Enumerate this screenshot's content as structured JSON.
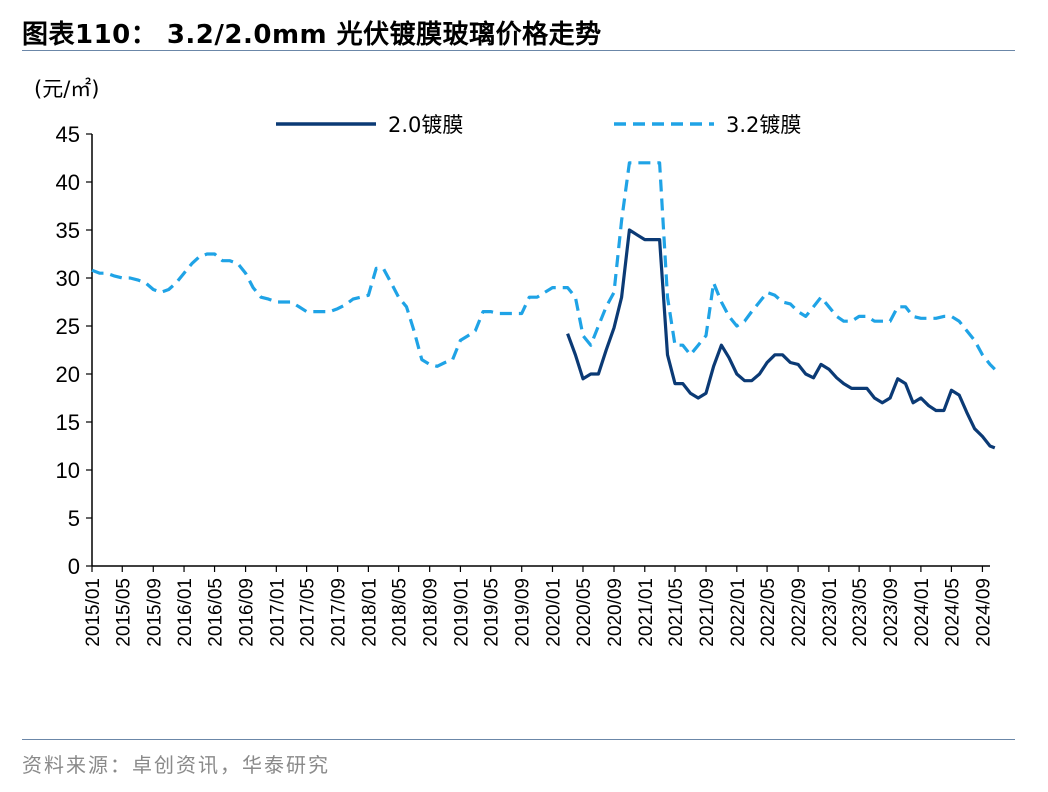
{
  "title": "图表110： 3.2/2.0mm 光伏镀膜玻璃价格走势",
  "source": "资料来源：卓创资讯，华泰研究",
  "chart_data": {
    "type": "line",
    "ylabel": "(元/㎡)",
    "ylim": [
      0,
      45
    ],
    "yticks": [
      "0",
      "5",
      "10",
      "15",
      "20",
      "25",
      "30",
      "35",
      "40",
      "45"
    ],
    "xlim": [
      "2015-01",
      "2024-10"
    ],
    "xticks": [
      "2015/01",
      "2015/05",
      "2015/09",
      "2016/01",
      "2016/05",
      "2016/09",
      "2017/01",
      "2017/05",
      "2017/09",
      "2018/01",
      "2018/05",
      "2018/09",
      "2019/01",
      "2019/05",
      "2019/09",
      "2020/01",
      "2020/05",
      "2020/09",
      "2021/01",
      "2021/05",
      "2021/09",
      "2022/01",
      "2022/05",
      "2022/09",
      "2023/01",
      "2023/05",
      "2023/09",
      "2024/01",
      "2024/05",
      "2024/09"
    ],
    "legend_position": "top",
    "grid": false,
    "series": [
      {
        "name": "2.0镀膜",
        "color": "#0b3a75",
        "style": "solid",
        "points": [
          [
            "2020-03-01",
            24.2
          ],
          [
            "2020-04-01",
            22.0
          ],
          [
            "2020-05-01",
            19.5
          ],
          [
            "2020-06-01",
            20.0
          ],
          [
            "2020-07-01",
            20.0
          ],
          [
            "2020-08-01",
            22.5
          ],
          [
            "2020-09-01",
            24.8
          ],
          [
            "2020-10-01",
            28.0
          ],
          [
            "2020-11-01",
            35.0
          ],
          [
            "2020-12-01",
            34.5
          ],
          [
            "2021-01-01",
            34.0
          ],
          [
            "2021-02-01",
            34.0
          ],
          [
            "2021-03-01",
            34.0
          ],
          [
            "2021-04-01",
            22.0
          ],
          [
            "2021-05-01",
            19.0
          ],
          [
            "2021-06-01",
            19.0
          ],
          [
            "2021-07-01",
            18.0
          ],
          [
            "2021-08-01",
            17.5
          ],
          [
            "2021-09-01",
            18.0
          ],
          [
            "2021-10-01",
            20.8
          ],
          [
            "2021-11-01",
            23.0
          ],
          [
            "2021-12-01",
            21.7
          ],
          [
            "2022-01-01",
            20.0
          ],
          [
            "2022-02-01",
            19.3
          ],
          [
            "2022-03-01",
            19.3
          ],
          [
            "2022-04-01",
            20.0
          ],
          [
            "2022-05-01",
            21.2
          ],
          [
            "2022-06-01",
            22.0
          ],
          [
            "2022-07-01",
            22.0
          ],
          [
            "2022-08-01",
            21.2
          ],
          [
            "2022-09-01",
            21.0
          ],
          [
            "2022-10-01",
            20.0
          ],
          [
            "2022-11-01",
            19.6
          ],
          [
            "2022-12-01",
            21.0
          ],
          [
            "2023-01-01",
            20.5
          ],
          [
            "2023-02-01",
            19.6
          ],
          [
            "2023-03-01",
            19.0
          ],
          [
            "2023-04-01",
            18.5
          ],
          [
            "2023-05-01",
            18.5
          ],
          [
            "2023-06-01",
            18.5
          ],
          [
            "2023-07-01",
            17.5
          ],
          [
            "2023-08-01",
            17.0
          ],
          [
            "2023-09-01",
            17.5
          ],
          [
            "2023-10-01",
            19.5
          ],
          [
            "2023-11-01",
            19.0
          ],
          [
            "2023-12-01",
            17.0
          ],
          [
            "2024-01-01",
            17.5
          ],
          [
            "2024-02-01",
            16.7
          ],
          [
            "2024-03-01",
            16.2
          ],
          [
            "2024-04-01",
            16.2
          ],
          [
            "2024-05-01",
            18.3
          ],
          [
            "2024-06-01",
            17.8
          ],
          [
            "2024-07-01",
            16.0
          ],
          [
            "2024-08-01",
            14.3
          ],
          [
            "2024-09-01",
            13.5
          ],
          [
            "2024-10-01",
            12.5
          ],
          [
            "2024-10-20",
            12.3
          ]
        ]
      },
      {
        "name": "3.2镀膜",
        "color": "#1fa3e6",
        "style": "dashed",
        "points": [
          [
            "2015-01-01",
            30.8
          ],
          [
            "2015-02-01",
            30.5
          ],
          [
            "2015-03-01",
            30.5
          ],
          [
            "2015-04-01",
            30.2
          ],
          [
            "2015-05-01",
            30.0
          ],
          [
            "2015-06-01",
            30.0
          ],
          [
            "2015-07-01",
            29.8
          ],
          [
            "2015-08-01",
            29.5
          ],
          [
            "2015-09-01",
            28.8
          ],
          [
            "2015-10-01",
            28.5
          ],
          [
            "2015-11-01",
            28.8
          ],
          [
            "2015-12-01",
            29.5
          ],
          [
            "2016-01-01",
            30.5
          ],
          [
            "2016-02-01",
            31.5
          ],
          [
            "2016-03-01",
            32.2
          ],
          [
            "2016-04-01",
            32.5
          ],
          [
            "2016-05-01",
            32.5
          ],
          [
            "2016-06-01",
            31.8
          ],
          [
            "2016-07-01",
            31.8
          ],
          [
            "2016-08-01",
            31.5
          ],
          [
            "2016-09-01",
            30.5
          ],
          [
            "2016-10-01",
            29.0
          ],
          [
            "2016-11-01",
            28.0
          ],
          [
            "2016-12-01",
            27.8
          ],
          [
            "2017-01-01",
            27.5
          ],
          [
            "2017-02-01",
            27.5
          ],
          [
            "2017-03-01",
            27.5
          ],
          [
            "2017-04-01",
            27.0
          ],
          [
            "2017-05-01",
            26.5
          ],
          [
            "2017-06-01",
            26.5
          ],
          [
            "2017-07-01",
            26.5
          ],
          [
            "2017-08-01",
            26.5
          ],
          [
            "2017-09-01",
            26.8
          ],
          [
            "2017-10-01",
            27.2
          ],
          [
            "2017-11-01",
            27.8
          ],
          [
            "2017-12-01",
            28.0
          ],
          [
            "2018-01-01",
            28.2
          ],
          [
            "2018-02-01",
            31.0
          ],
          [
            "2018-03-01",
            31.0
          ],
          [
            "2018-04-01",
            29.5
          ],
          [
            "2018-05-01",
            28.0
          ],
          [
            "2018-06-01",
            27.0
          ],
          [
            "2018-07-01",
            24.5
          ],
          [
            "2018-08-01",
            21.5
          ],
          [
            "2018-09-01",
            21.0
          ],
          [
            "2018-10-01",
            20.8
          ],
          [
            "2018-11-01",
            21.2
          ],
          [
            "2018-12-01",
            21.5
          ],
          [
            "2019-01-01",
            23.5
          ],
          [
            "2019-02-01",
            24.0
          ],
          [
            "2019-03-01",
            24.5
          ],
          [
            "2019-04-01",
            26.5
          ],
          [
            "2019-05-01",
            26.5
          ],
          [
            "2019-06-01",
            26.3
          ],
          [
            "2019-07-01",
            26.3
          ],
          [
            "2019-08-01",
            26.3
          ],
          [
            "2019-09-01",
            26.3
          ],
          [
            "2019-10-01",
            28.0
          ],
          [
            "2019-11-01",
            28.0
          ],
          [
            "2019-12-01",
            28.5
          ],
          [
            "2020-01-01",
            29.0
          ],
          [
            "2020-02-01",
            29.0
          ],
          [
            "2020-03-01",
            29.0
          ],
          [
            "2020-04-01",
            28.0
          ],
          [
            "2020-05-01",
            24.0
          ],
          [
            "2020-06-01",
            23.0
          ],
          [
            "2020-07-01",
            25.0
          ],
          [
            "2020-08-01",
            27.0
          ],
          [
            "2020-09-01",
            28.5
          ],
          [
            "2020-10-01",
            36.0
          ],
          [
            "2020-11-01",
            42.0
          ],
          [
            "2020-12-01",
            42.0
          ],
          [
            "2021-01-01",
            42.0
          ],
          [
            "2021-02-01",
            42.0
          ],
          [
            "2021-03-01",
            42.0
          ],
          [
            "2021-04-01",
            28.0
          ],
          [
            "2021-05-01",
            23.0
          ],
          [
            "2021-06-01",
            23.0
          ],
          [
            "2021-07-01",
            22.0
          ],
          [
            "2021-08-01",
            23.0
          ],
          [
            "2021-09-01",
            24.0
          ],
          [
            "2021-10-01",
            29.5
          ],
          [
            "2021-11-01",
            27.5
          ],
          [
            "2021-12-01",
            26.0
          ],
          [
            "2022-01-01",
            25.0
          ],
          [
            "2022-02-01",
            25.5
          ],
          [
            "2022-03-01",
            26.5
          ],
          [
            "2022-04-01",
            27.5
          ],
          [
            "2022-05-01",
            28.5
          ],
          [
            "2022-06-01",
            28.2
          ],
          [
            "2022-07-01",
            27.5
          ],
          [
            "2022-08-01",
            27.3
          ],
          [
            "2022-09-01",
            26.5
          ],
          [
            "2022-10-01",
            26.0
          ],
          [
            "2022-11-01",
            27.0
          ],
          [
            "2022-12-01",
            28.0
          ],
          [
            "2023-01-01",
            27.0
          ],
          [
            "2023-02-01",
            26.0
          ],
          [
            "2023-03-01",
            25.5
          ],
          [
            "2023-04-01",
            25.5
          ],
          [
            "2023-05-01",
            26.0
          ],
          [
            "2023-06-01",
            26.0
          ],
          [
            "2023-07-01",
            25.5
          ],
          [
            "2023-08-01",
            25.5
          ],
          [
            "2023-09-01",
            25.5
          ],
          [
            "2023-10-01",
            27.0
          ],
          [
            "2023-11-01",
            27.0
          ],
          [
            "2023-12-01",
            26.0
          ],
          [
            "2024-01-01",
            25.8
          ],
          [
            "2024-02-01",
            25.8
          ],
          [
            "2024-03-01",
            25.8
          ],
          [
            "2024-04-01",
            26.0
          ],
          [
            "2024-05-01",
            26.0
          ],
          [
            "2024-06-01",
            25.5
          ],
          [
            "2024-07-01",
            24.5
          ],
          [
            "2024-08-01",
            23.5
          ],
          [
            "2024-09-01",
            22.0
          ],
          [
            "2024-10-01",
            21.0
          ],
          [
            "2024-10-20",
            20.5
          ]
        ]
      }
    ]
  }
}
